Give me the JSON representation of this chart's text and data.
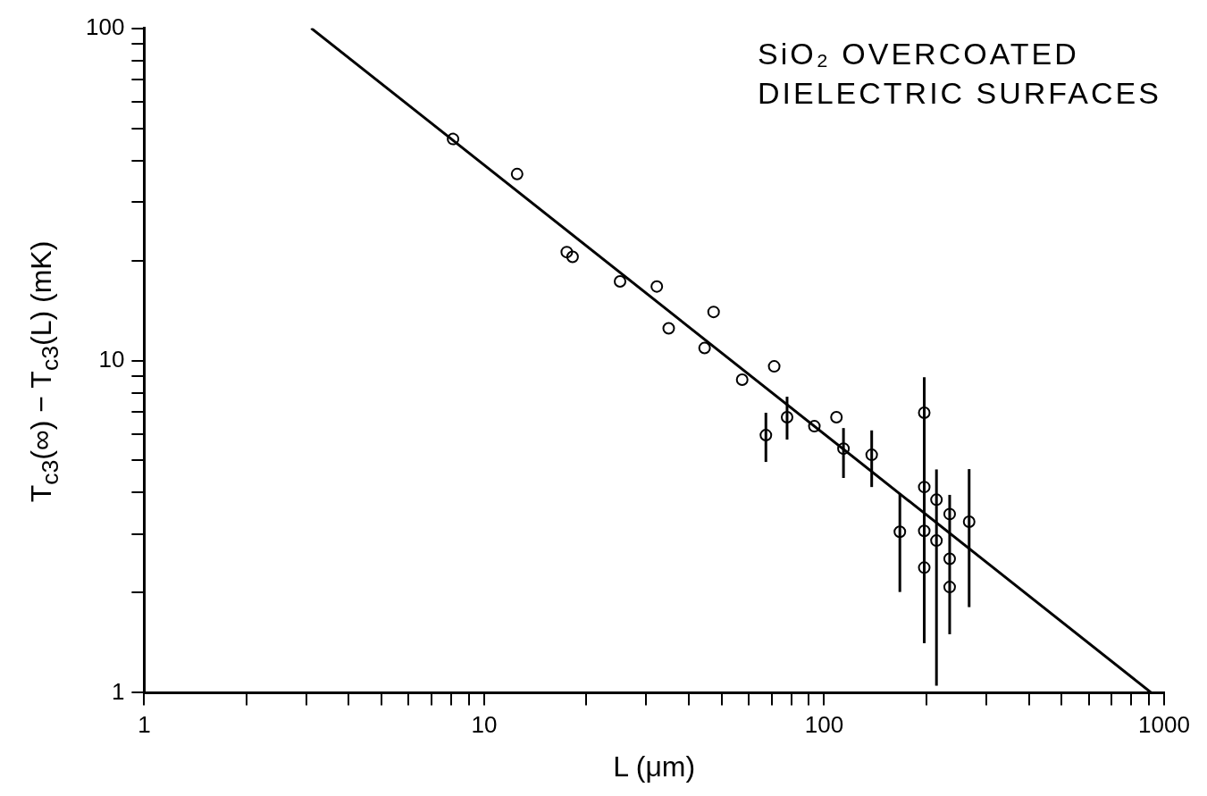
{
  "chart_data": {
    "type": "scatter",
    "xlabel": "L (μm)",
    "ylabel": "T$_{c3}$(∞) − T$_{c3}$(L) (mK)",
    "annotations": [
      "SiO₂ OVERCOATED DIELECTRIC SURFACES"
    ],
    "log": "xy",
    "grid": false,
    "legend": false,
    "xlim": [
      1,
      1000
    ],
    "ylim": [
      1,
      100
    ],
    "xticks": [
      1,
      {
        "value": 2,
        "label": null
      },
      {
        "value": 3,
        "label": null
      },
      {
        "value": 4,
        "label": null
      },
      {
        "value": 5,
        "label": null
      },
      {
        "value": 6,
        "label": null
      },
      {
        "value": 7,
        "label": null
      },
      {
        "value": 8,
        "label": null
      },
      {
        "value": 9,
        "label": null
      },
      10,
      {
        "value": 20,
        "label": null
      },
      {
        "value": 30,
        "label": null
      },
      {
        "value": 40,
        "label": null
      },
      {
        "value": 50,
        "label": null
      },
      {
        "value": 60,
        "label": null
      },
      {
        "value": 70,
        "label": null
      },
      {
        "value": 80,
        "label": null
      },
      {
        "value": 90,
        "label": null
      },
      100,
      {
        "value": 200,
        "label": null
      },
      {
        "value": 300,
        "label": null
      },
      {
        "value": 400,
        "label": null
      },
      {
        "value": 500,
        "label": null
      },
      {
        "value": 600,
        "label": null
      },
      {
        "value": 700,
        "label": null
      },
      {
        "value": 800,
        "label": null
      },
      {
        "value": 900,
        "label": null
      },
      1000
    ],
    "yticks": [
      1,
      {
        "value": 2,
        "label": null
      },
      {
        "value": 3,
        "label": null
      },
      {
        "value": 4,
        "label": null
      },
      {
        "value": 5,
        "label": null
      },
      {
        "value": 6,
        "label": null
      },
      {
        "value": 7,
        "label": null
      },
      {
        "value": 8,
        "label": null
      },
      {
        "value": 9,
        "label": null
      },
      10,
      {
        "value": 20,
        "label": null
      },
      {
        "value": 30,
        "label": null
      },
      {
        "value": 40,
        "label": null
      },
      {
        "value": 50,
        "label": null
      },
      {
        "value": 60,
        "label": null
      },
      {
        "value": 70,
        "label": null
      },
      {
        "value": 80,
        "label": null
      },
      {
        "value": 90,
        "label": null
      },
      100
    ],
    "series": [
      {
        "marker": "circle",
        "color": "#000000",
        "x": [
          8.1,
          12.5,
          17.5,
          18.2,
          25.1,
          32.2,
          34.9,
          44.5,
          47.3,
          57.4,
          71.3,
          67.4,
          77.8,
          93.6,
          108.7,
          114,
          138,
          167,
          197,
          197,
          197,
          197,
          214,
          214,
          234,
          234,
          234,
          267
        ],
        "values": [
          46.4,
          36.4,
          21.2,
          20.5,
          17.3,
          16.7,
          12.5,
          10.9,
          14.0,
          8.75,
          9.6,
          5.96,
          6.75,
          6.34,
          6.75,
          5.43,
          5.2,
          3.05,
          6.96,
          4.16,
          3.07,
          2.38,
          3.81,
          2.87,
          3.45,
          2.53,
          2.08,
          3.27
        ],
        "errors": [
          null,
          null,
          null,
          null,
          null,
          null,
          null,
          null,
          null,
          null,
          null,
          [
            4.95,
            6.96
          ],
          [
            5.78,
            7.78
          ],
          null,
          null,
          [
            4.43,
            6.26
          ],
          [
            4.16,
            6.16
          ],
          [
            2.01,
            3.98
          ],
          [
            1.41,
            8.9
          ],
          null,
          null,
          null,
          [
            1.05,
            4.7
          ],
          null,
          null,
          [
            1.5,
            3.94
          ],
          null,
          [
            1.81,
            4.71
          ]
        ]
      },
      {
        "type": "line",
        "marker": "none",
        "color": "#000000",
        "x": [
          3.1,
          917
        ],
        "values": [
          100,
          1
        ]
      }
    ]
  }
}
